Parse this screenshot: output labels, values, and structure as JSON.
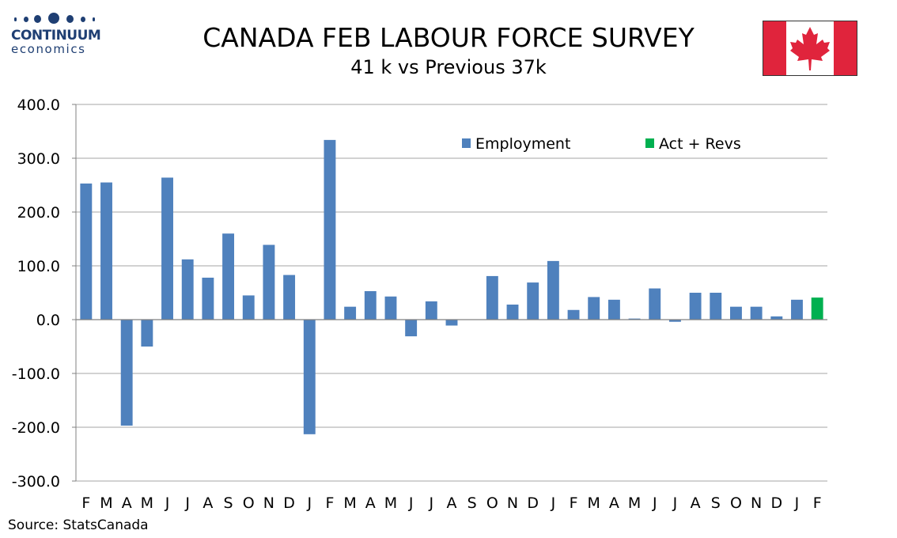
{
  "logo": {
    "line1": "CONTINUUM",
    "line2": "economics"
  },
  "header": {
    "title": "CANADA FEB LABOUR FORCE SURVEY",
    "subtitle": "41 k vs Previous 37k"
  },
  "flag": {
    "name": "canada-flag-icon",
    "red": "#E0243C",
    "white": "#FFFFFF"
  },
  "source": "Source: StatsCanada",
  "colors": {
    "employment": "#4F81BD",
    "act_revs": "#00B050",
    "grid": "#A6A6A6",
    "axis": "#808080",
    "logo": "#1F3F73"
  },
  "chart_data": {
    "type": "bar",
    "ylim": [
      -300,
      400
    ],
    "yticks": [
      400,
      300,
      200,
      100,
      0,
      -100,
      -200,
      -300
    ],
    "ytick_labels": [
      "400.0",
      "300.0",
      "200.0",
      "100.0",
      "0.0",
      "-100.0",
      "-200.0",
      "-300.0"
    ],
    "grid": true,
    "legend_position": "top-right",
    "categories": [
      "F",
      "M",
      "A",
      "M",
      "J",
      "J",
      "A",
      "S",
      "O",
      "N",
      "D",
      "J",
      "F",
      "M",
      "A",
      "M",
      "J",
      "J",
      "A",
      "S",
      "O",
      "N",
      "D",
      "J",
      "F",
      "M",
      "A",
      "M",
      "J",
      "J",
      "A",
      "S",
      "O",
      "N",
      "D",
      "J",
      "F"
    ],
    "series": [
      {
        "name": "Employment",
        "values": [
          253,
          255,
          -197,
          -50,
          264,
          112,
          78,
          160,
          45,
          139,
          83,
          -213,
          334,
          24,
          53,
          43,
          -31,
          34,
          -11,
          null,
          81,
          28,
          69,
          109,
          18,
          42,
          37,
          2,
          58,
          -4,
          50,
          50,
          24,
          24,
          6,
          37,
          null
        ]
      },
      {
        "name": "Act + Revs",
        "values": [
          null,
          null,
          null,
          null,
          null,
          null,
          null,
          null,
          null,
          null,
          null,
          null,
          null,
          null,
          null,
          null,
          null,
          null,
          null,
          null,
          null,
          null,
          null,
          null,
          null,
          null,
          null,
          null,
          null,
          null,
          null,
          null,
          null,
          null,
          null,
          null,
          41
        ]
      }
    ]
  }
}
